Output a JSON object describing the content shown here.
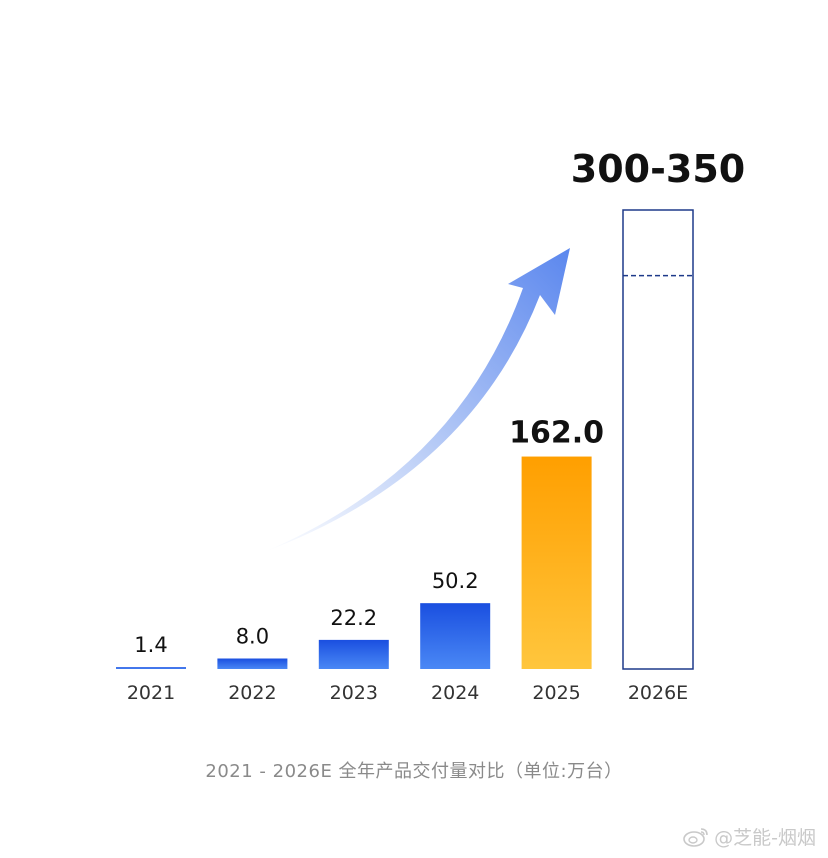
{
  "chart_data": {
    "type": "bar",
    "categories": [
      "2021",
      "2022",
      "2023",
      "2024",
      "2025",
      "2026E"
    ],
    "values": [
      1.4,
      8.0,
      22.2,
      50.2,
      162.0,
      350
    ],
    "value_labels": [
      "1.4",
      "8.0",
      "22.2",
      "50.2",
      "162.0",
      "300-350"
    ],
    "forecast_range": [
      300,
      350
    ],
    "ylim": [
      0,
      350
    ],
    "title": "",
    "xlabel": "",
    "ylabel": "",
    "grid": false,
    "colors": {
      "blue_top": "#1a4fe0",
      "blue_bottom": "#4a88f5",
      "orange_top": "#ff9f00",
      "orange_bottom": "#ffc63d",
      "forecast_outline": "#1e3a8a",
      "label_text": "#111111",
      "tick_text": "#333333",
      "trend_arrow": "#6e96ef"
    }
  },
  "caption": "2021 - 2026E 全年产品交付量对比（单位:万台）",
  "watermark": {
    "icon": "weibo-icon",
    "text": "@芝能-烟烟"
  }
}
